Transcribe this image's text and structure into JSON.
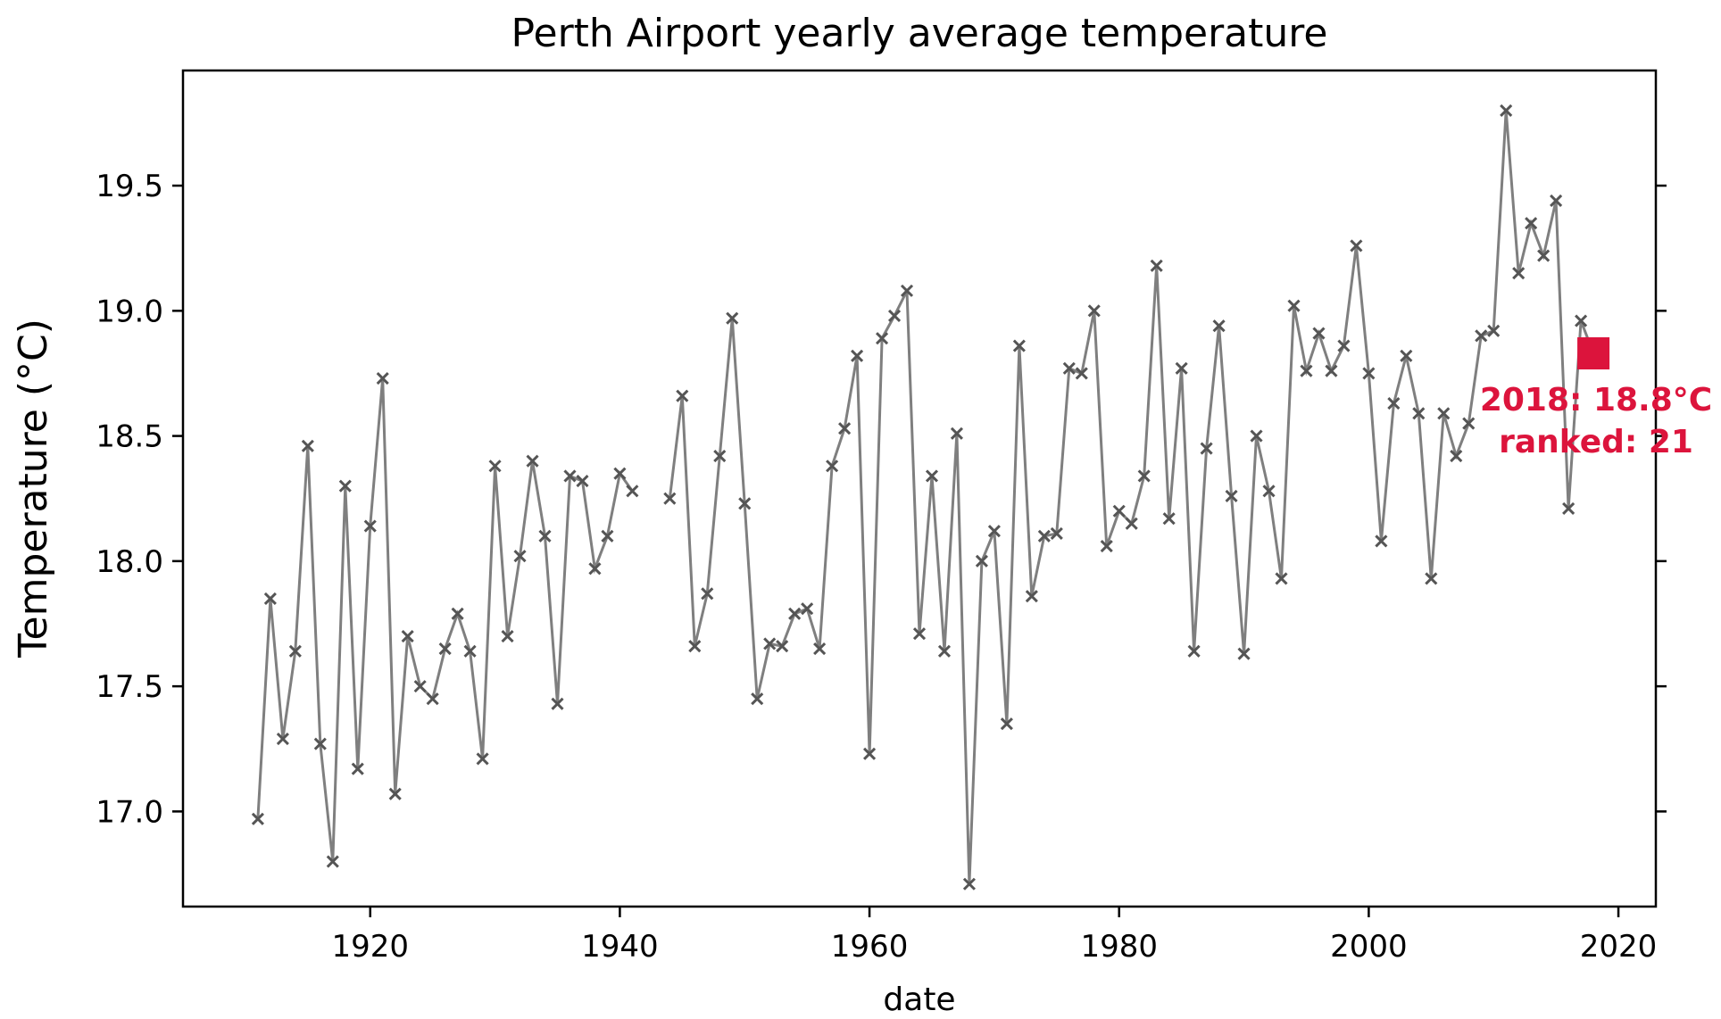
{
  "chart_data": {
    "type": "line",
    "title": "Perth Airport yearly average temperature",
    "xlabel": "date",
    "ylabel": "Temperature (°C)",
    "xlim": [
      1905,
      2023
    ],
    "ylim": [
      16.62,
      19.96
    ],
    "xticks": [
      1920,
      1940,
      1960,
      1980,
      2000,
      2020
    ],
    "yticks": [
      17.0,
      17.5,
      18.0,
      18.5,
      19.0,
      19.5
    ],
    "grid": false,
    "legend": "none",
    "colors": {
      "line": "#7f7f7f",
      "marker": "#555555",
      "highlight": "#dc143c"
    },
    "series": [
      {
        "x": [
          1911,
          1912,
          1913,
          1914,
          1915,
          1916,
          1917,
          1918,
          1919,
          1920,
          1921,
          1922,
          1923,
          1924,
          1925,
          1926,
          1927,
          1928,
          1929,
          1930,
          1931,
          1932,
          1933,
          1934,
          1935,
          1936,
          1937,
          1938,
          1939,
          1940,
          1941,
          null,
          1944,
          1945,
          1946,
          1947,
          1948,
          1949,
          1950,
          1951,
          1952,
          1953,
          1954,
          1955,
          1956,
          1957,
          1958,
          1959,
          1960,
          1961,
          1962,
          1963,
          1964,
          1965,
          1966,
          1967,
          1968,
          1969,
          1970,
          1971,
          1972,
          1973,
          1974,
          1975,
          1976,
          1977,
          1978,
          1979,
          1980,
          1981,
          1982,
          1983,
          1984,
          1985,
          1986,
          1987,
          1988,
          1989,
          1990,
          1991,
          1992,
          1993,
          1994,
          1995,
          1996,
          1997,
          1998,
          1999,
          2000,
          2001,
          2002,
          2003,
          2004,
          2005,
          2006,
          2007,
          2008,
          2009,
          2010,
          2011,
          2012,
          2013,
          2014,
          2015,
          2016,
          2017,
          2018
        ],
        "y": [
          16.97,
          17.85,
          17.29,
          17.64,
          18.46,
          17.27,
          16.8,
          18.3,
          17.17,
          18.14,
          18.73,
          17.07,
          17.7,
          17.5,
          17.45,
          17.65,
          17.79,
          17.64,
          17.21,
          18.38,
          17.7,
          18.02,
          18.4,
          18.1,
          17.43,
          18.34,
          18.32,
          17.97,
          18.1,
          18.35,
          18.28,
          null,
          18.25,
          18.66,
          17.66,
          17.87,
          18.42,
          18.97,
          18.23,
          17.45,
          17.67,
          17.66,
          17.79,
          17.81,
          17.65,
          18.38,
          18.53,
          18.82,
          17.23,
          18.89,
          18.98,
          19.08,
          17.71,
          18.34,
          17.64,
          18.51,
          16.71,
          18.0,
          18.12,
          17.35,
          18.86,
          17.86,
          18.1,
          18.11,
          18.77,
          18.75,
          19.0,
          18.06,
          18.2,
          18.15,
          18.34,
          19.18,
          18.17,
          18.77,
          17.64,
          18.45,
          18.94,
          18.26,
          17.63,
          18.5,
          18.28,
          17.93,
          19.02,
          18.76,
          18.91,
          18.76,
          18.86,
          19.26,
          18.75,
          18.08,
          18.63,
          18.82,
          18.59,
          17.93,
          18.59,
          18.42,
          18.55,
          18.9,
          18.92,
          19.8,
          19.15,
          19.35,
          19.22,
          19.44,
          18.21,
          18.96,
          18.83
        ]
      }
    ],
    "highlight": {
      "x": 2018,
      "y": 18.83
    },
    "annotation": {
      "line1": "2018: 18.8°C",
      "line2": "ranked: 21"
    }
  }
}
